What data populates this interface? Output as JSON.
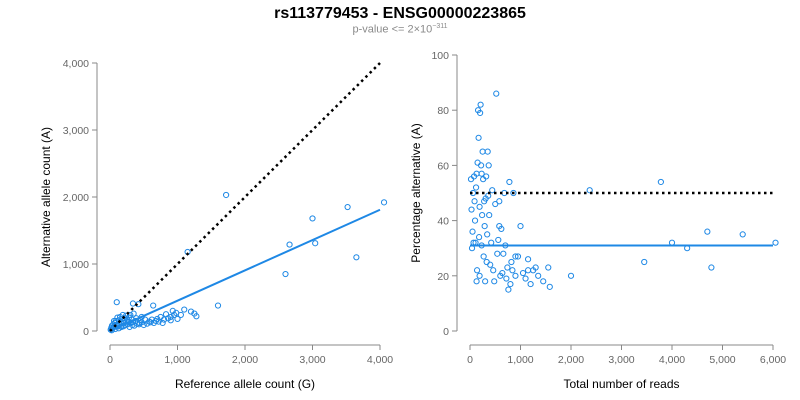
{
  "header": {
    "title": "rs113779453 - ENSG00000223865",
    "pvalue_prefix": "p-value <= 2×10",
    "pvalue_exponent": "−311"
  },
  "colors": {
    "points": "#1e88e5",
    "fit": "#1e88e5",
    "reference": "#000000",
    "axis": "#888888"
  },
  "chart_data": [
    {
      "type": "scatter",
      "title": "",
      "xlabel": "Reference allele count (G)",
      "ylabel": "Alternative allele count (A)",
      "xlim": [
        0,
        4000
      ],
      "ylim": [
        0,
        4000
      ],
      "x_ticks": [
        0,
        1000,
        2000,
        3000,
        4000
      ],
      "x_tick_labels": [
        "0",
        "1,000",
        "2,000",
        "3,000",
        "4,000"
      ],
      "y_ticks": [
        0,
        1000,
        2000,
        3000,
        4000
      ],
      "y_tick_labels": [
        "0",
        "1,000",
        "2,000",
        "3,000",
        "4,000"
      ],
      "reference_line": {
        "style": "dotted",
        "x": [
          0,
          4000
        ],
        "y": [
          0,
          4000
        ]
      },
      "fit_line": {
        "style": "solid",
        "x": [
          0,
          4000
        ],
        "y": [
          0,
          1810
        ]
      },
      "points": [
        [
          10,
          20
        ],
        [
          20,
          50
        ],
        [
          30,
          80
        ],
        [
          40,
          40
        ],
        [
          50,
          100
        ],
        [
          60,
          60
        ],
        [
          70,
          120
        ],
        [
          80,
          30
        ],
        [
          90,
          150
        ],
        [
          100,
          90
        ],
        [
          110,
          200
        ],
        [
          120,
          70
        ],
        [
          130,
          160
        ],
        [
          140,
          110
        ],
        [
          150,
          210
        ],
        [
          160,
          130
        ],
        [
          170,
          60
        ],
        [
          180,
          180
        ],
        [
          190,
          240
        ],
        [
          200,
          150
        ],
        [
          210,
          120
        ],
        [
          220,
          190
        ],
        [
          230,
          90
        ],
        [
          240,
          230
        ],
        [
          250,
          170
        ],
        [
          260,
          100
        ],
        [
          270,
          140
        ],
        [
          280,
          200
        ],
        [
          290,
          60
        ],
        [
          300,
          240
        ],
        [
          310,
          120
        ],
        [
          320,
          170
        ],
        [
          330,
          90
        ],
        [
          340,
          130
        ],
        [
          350,
          260
        ],
        [
          360,
          80
        ],
        [
          380,
          150
        ],
        [
          400,
          110
        ],
        [
          420,
          400
        ],
        [
          430,
          100
        ],
        [
          440,
          120
        ],
        [
          450,
          160
        ],
        [
          470,
          130
        ],
        [
          500,
          90
        ],
        [
          520,
          170
        ],
        [
          550,
          110
        ],
        [
          580,
          140
        ],
        [
          600,
          130
        ],
        [
          620,
          170
        ],
        [
          650,
          120
        ],
        [
          680,
          150
        ],
        [
          700,
          180
        ],
        [
          720,
          140
        ],
        [
          750,
          210
        ],
        [
          780,
          120
        ],
        [
          800,
          170
        ],
        [
          830,
          250
        ],
        [
          860,
          190
        ],
        [
          900,
          210
        ],
        [
          930,
          300
        ],
        [
          950,
          240
        ],
        [
          980,
          270
        ],
        [
          1000,
          180
        ],
        [
          1050,
          240
        ],
        [
          1100,
          320
        ],
        [
          1150,
          1180
        ],
        [
          1200,
          290
        ],
        [
          1250,
          260
        ],
        [
          1280,
          220
        ],
        [
          1600,
          380
        ],
        [
          1720,
          2030
        ],
        [
          2600,
          850
        ],
        [
          2660,
          1290
        ],
        [
          3000,
          1680
        ],
        [
          3040,
          1310
        ],
        [
          3520,
          1850
        ],
        [
          3650,
          1100
        ],
        [
          4060,
          1920
        ],
        [
          100,
          430
        ],
        [
          340,
          410
        ],
        [
          60,
          150
        ],
        [
          160,
          70
        ],
        [
          280,
          130
        ],
        [
          470,
          210
        ],
        [
          640,
          380
        ],
        [
          900,
          160
        ],
        [
          25,
          10
        ],
        [
          130,
          40
        ],
        [
          200,
          70
        ],
        [
          390,
          190
        ]
      ]
    },
    {
      "type": "scatter",
      "title": "",
      "xlabel": "Total number of reads",
      "ylabel": "Percentage alternative (A)",
      "xlim": [
        0,
        6000
      ],
      "ylim": [
        0,
        100
      ],
      "x_ticks": [
        0,
        1000,
        2000,
        3000,
        4000,
        5000,
        6000
      ],
      "x_tick_labels": [
        "0",
        "1,000",
        "2,000",
        "3,000",
        "4,000",
        "5,000",
        "6,000"
      ],
      "y_ticks": [
        0,
        20,
        40,
        60,
        80,
        100
      ],
      "y_tick_labels": [
        "0",
        "20",
        "40",
        "60",
        "80",
        "100"
      ],
      "reference_line": {
        "style": "dotted",
        "x": [
          0,
          6000
        ],
        "y": [
          50,
          50
        ]
      },
      "fit_line": {
        "style": "solid",
        "x": [
          0,
          6000
        ],
        "y": [
          31,
          31
        ]
      },
      "points": [
        [
          20,
          55
        ],
        [
          30,
          44
        ],
        [
          40,
          30
        ],
        [
          50,
          36
        ],
        [
          60,
          50
        ],
        [
          80,
          56
        ],
        [
          90,
          47
        ],
        [
          100,
          40
        ],
        [
          110,
          32
        ],
        [
          120,
          52
        ],
        [
          130,
          57
        ],
        [
          140,
          22
        ],
        [
          150,
          61
        ],
        [
          160,
          80
        ],
        [
          170,
          70
        ],
        [
          180,
          34
        ],
        [
          190,
          45
        ],
        [
          200,
          79
        ],
        [
          210,
          82
        ],
        [
          220,
          60
        ],
        [
          230,
          31
        ],
        [
          240,
          42
        ],
        [
          250,
          65
        ],
        [
          260,
          55
        ],
        [
          270,
          27
        ],
        [
          280,
          47
        ],
        [
          290,
          38
        ],
        [
          300,
          18
        ],
        [
          310,
          48
        ],
        [
          320,
          56
        ],
        [
          330,
          25
        ],
        [
          340,
          35
        ],
        [
          350,
          65
        ],
        [
          360,
          49
        ],
        [
          380,
          42
        ],
        [
          400,
          24
        ],
        [
          420,
          32
        ],
        [
          440,
          51
        ],
        [
          460,
          22
        ],
        [
          480,
          18
        ],
        [
          500,
          46
        ],
        [
          520,
          86
        ],
        [
          540,
          28
        ],
        [
          560,
          33
        ],
        [
          580,
          47
        ],
        [
          600,
          20
        ],
        [
          620,
          37
        ],
        [
          640,
          21
        ],
        [
          660,
          28
        ],
        [
          680,
          50
        ],
        [
          700,
          31
        ],
        [
          720,
          19
        ],
        [
          740,
          23
        ],
        [
          760,
          15
        ],
        [
          780,
          54
        ],
        [
          800,
          17
        ],
        [
          820,
          25
        ],
        [
          840,
          22
        ],
        [
          860,
          50
        ],
        [
          900,
          20
        ],
        [
          950,
          27
        ],
        [
          1000,
          38
        ],
        [
          1050,
          21
        ],
        [
          1100,
          19
        ],
        [
          1150,
          26
        ],
        [
          1200,
          17
        ],
        [
          1250,
          22
        ],
        [
          1300,
          23
        ],
        [
          1350,
          20
        ],
        [
          1450,
          18
        ],
        [
          1550,
          23
        ],
        [
          1580,
          16
        ],
        [
          2000,
          20
        ],
        [
          2370,
          51
        ],
        [
          3450,
          25
        ],
        [
          3780,
          54
        ],
        [
          4000,
          32
        ],
        [
          4300,
          30
        ],
        [
          4700,
          36
        ],
        [
          4780,
          23
        ],
        [
          5400,
          35
        ],
        [
          6050,
          32
        ],
        [
          70,
          32
        ],
        [
          130,
          18
        ],
        [
          190,
          20
        ],
        [
          230,
          57
        ],
        [
          370,
          60
        ],
        [
          580,
          38
        ],
        [
          900,
          27
        ],
        [
          1150,
          22
        ]
      ]
    }
  ]
}
